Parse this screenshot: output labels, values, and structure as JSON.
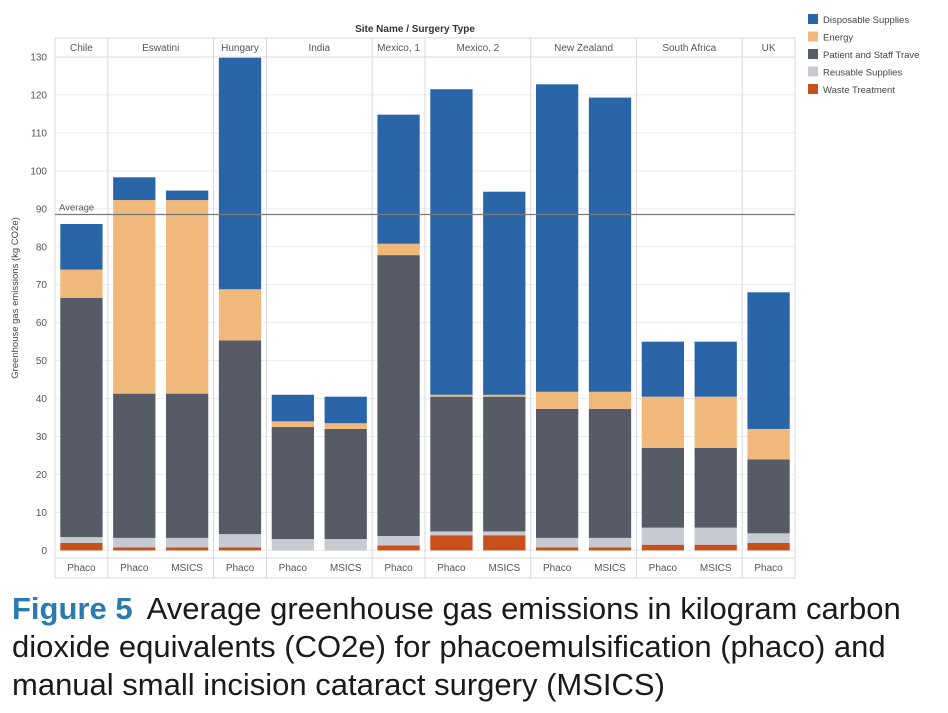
{
  "chart_data": {
    "type": "stacked-bar",
    "header_title": "Site Name / Surgery Type",
    "ylabel": "Greenhouse gas emissions (kg CO2e)",
    "ylim": [
      -2,
      135
    ],
    "yticks": [
      0,
      10,
      20,
      30,
      40,
      50,
      60,
      70,
      80,
      90,
      100,
      110,
      120,
      130
    ],
    "reference_line": {
      "label": "Average",
      "value": 88.5
    },
    "legend_position": "right",
    "series": [
      {
        "name": "Waste Treatment",
        "color": "#c8511b"
      },
      {
        "name": "Reusable Supplies",
        "color": "#c6cad3"
      },
      {
        "name": "Patient and Staff Trave",
        "color": "#565b67"
      },
      {
        "name": "Energy",
        "color": "#f0b87a"
      },
      {
        "name": "Disposable Supplies",
        "color": "#2a66a7"
      }
    ],
    "legend_order": [
      "Disposable Supplies",
      "Energy",
      "Patient and Staff Trave",
      "Reusable Supplies",
      "Waste Treatment"
    ],
    "groups": [
      {
        "site": "Chile",
        "bars": [
          {
            "label": "Phaco",
            "values": [
              2,
              1.5,
              63,
              7.5,
              12
            ]
          }
        ]
      },
      {
        "site": "Eswatini",
        "bars": [
          {
            "label": "Phaco",
            "values": [
              0.8,
              2.5,
              38,
              51,
              6
            ]
          },
          {
            "label": "MSICS",
            "values": [
              0.8,
              2.5,
              38,
              51,
              2.5
            ]
          }
        ]
      },
      {
        "site": "Hungary",
        "bars": [
          {
            "label": "Phaco",
            "values": [
              0.8,
              3.5,
              51,
              13.5,
              61
            ]
          }
        ]
      },
      {
        "site": "India",
        "bars": [
          {
            "label": "Phaco",
            "values": [
              0,
              3,
              29.5,
              1.5,
              7
            ]
          },
          {
            "label": "MSICS",
            "values": [
              0,
              3,
              29,
              1.5,
              7
            ]
          }
        ]
      },
      {
        "site": "Mexico, 1",
        "bars": [
          {
            "label": "Phaco",
            "values": [
              1.3,
              2.5,
              74,
              3,
              34
            ]
          }
        ]
      },
      {
        "site": "Mexico, 2",
        "bars": [
          {
            "label": "Phaco",
            "values": [
              4,
              1,
              35.5,
              0.5,
              80.5
            ]
          },
          {
            "label": "MSICS",
            "values": [
              4,
              1,
              35.5,
              0.5,
              53.5
            ]
          }
        ]
      },
      {
        "site": "New Zealand",
        "bars": [
          {
            "label": "Phaco",
            "values": [
              0.8,
              2.5,
              34,
              4.5,
              81
            ]
          },
          {
            "label": "MSICS",
            "values": [
              0.8,
              2.5,
              34,
              4.5,
              77.5
            ]
          }
        ]
      },
      {
        "site": "South Africa",
        "bars": [
          {
            "label": "Phaco",
            "values": [
              1.5,
              4.5,
              21,
              13.5,
              14.5
            ]
          },
          {
            "label": "MSICS",
            "values": [
              1.5,
              4.5,
              21,
              13.5,
              14.5
            ]
          }
        ]
      },
      {
        "site": "UK",
        "bars": [
          {
            "label": "Phaco",
            "values": [
              2,
              2.5,
              19.5,
              8,
              36
            ]
          }
        ]
      }
    ]
  },
  "caption": {
    "label": "Figure 5",
    "text": "Average greenhouse gas emissions in kilogram carbon dioxide equivalents (CO2e) for phacoemulsification (phaco) and manual small incision cataract surgery (MSICS)"
  }
}
